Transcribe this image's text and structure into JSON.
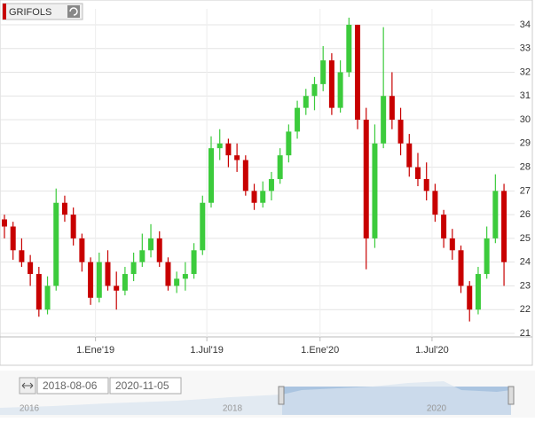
{
  "chart_data": {
    "type": "candlestick",
    "title": "GRIFOLS",
    "x": [
      "2018-08-06",
      "2018-08-20",
      "2018-09-03",
      "2018-09-17",
      "2018-10-01",
      "2018-10-15",
      "2018-10-29",
      "2018-11-12",
      "2018-11-26",
      "2018-12-10",
      "2018-12-24",
      "2019-01-07",
      "2019-01-21",
      "2019-02-04",
      "2019-02-18",
      "2019-03-04",
      "2019-03-18",
      "2019-04-01",
      "2019-04-15",
      "2019-04-29",
      "2019-05-13",
      "2019-05-27",
      "2019-06-10",
      "2019-06-24",
      "2019-07-08",
      "2019-07-22",
      "2019-08-05",
      "2019-08-19",
      "2019-09-02",
      "2019-09-16",
      "2019-09-30",
      "2019-10-14",
      "2019-10-28",
      "2019-11-11",
      "2019-11-25",
      "2019-12-09",
      "2019-12-23",
      "2020-01-06",
      "2020-01-20",
      "2020-02-03",
      "2020-02-17",
      "2020-03-02",
      "2020-03-16",
      "2020-03-30",
      "2020-04-13",
      "2020-04-27",
      "2020-05-11",
      "2020-05-25",
      "2020-06-08",
      "2020-06-22",
      "2020-07-06",
      "2020-07-20",
      "2020-08-03",
      "2020-08-17",
      "2020-08-31",
      "2020-09-14",
      "2020-09-28",
      "2020-10-12",
      "2020-10-26"
    ],
    "open": [
      25.8,
      25.5,
      24.5,
      24.0,
      23.5,
      22.0,
      23.0,
      26.5,
      26.0,
      25.0,
      24.0,
      22.5,
      24.0,
      23.0,
      22.8,
      23.5,
      24.0,
      24.5,
      25.0,
      24.0,
      23.0,
      23.3,
      23.5,
      24.5,
      26.5,
      28.8,
      29.0,
      28.5,
      28.3,
      27.0,
      26.5,
      27.0,
      27.5,
      28.5,
      29.5,
      30.5,
      31.0,
      31.5,
      32.5,
      30.5,
      32.0,
      34.0,
      30.0,
      25.0,
      29.0,
      31.0,
      30.0,
      29.0,
      28.0,
      27.5,
      27.0,
      26.0,
      25.0,
      24.5,
      23.0,
      22.0,
      23.5,
      25.0,
      27.0
    ],
    "high": [
      26.0,
      25.7,
      25.0,
      24.3,
      23.8,
      23.4,
      27.1,
      26.8,
      26.3,
      25.2,
      24.2,
      24.4,
      24.5,
      23.6,
      23.8,
      24.4,
      25.2,
      25.6,
      25.3,
      24.2,
      23.6,
      24.0,
      24.8,
      26.8,
      29.3,
      29.6,
      29.2,
      29.0,
      28.5,
      27.3,
      27.4,
      27.8,
      28.8,
      29.8,
      30.8,
      31.3,
      31.8,
      33.1,
      32.8,
      32.5,
      34.3,
      34.0,
      30.5,
      29.8,
      33.9,
      32.0,
      30.5,
      29.4,
      28.6,
      28.2,
      27.3,
      26.2,
      25.4,
      24.7,
      23.2,
      23.8,
      25.5,
      27.7,
      27.3
    ],
    "low": [
      25.0,
      24.1,
      23.8,
      23.0,
      21.7,
      21.8,
      22.8,
      25.7,
      24.7,
      23.6,
      22.2,
      22.3,
      22.8,
      22.0,
      22.6,
      23.2,
      23.8,
      24.2,
      23.8,
      22.8,
      22.7,
      22.8,
      23.3,
      24.3,
      26.3,
      28.3,
      28.0,
      27.8,
      26.8,
      26.2,
      26.3,
      26.6,
      27.3,
      28.2,
      29.2,
      30.2,
      30.4,
      31.2,
      30.2,
      30.3,
      31.8,
      29.6,
      23.7,
      24.6,
      28.8,
      29.6,
      28.5,
      27.6,
      27.2,
      26.6,
      25.7,
      24.6,
      24.1,
      22.7,
      21.5,
      21.8,
      23.3,
      24.8,
      23.0
    ],
    "close": [
      25.5,
      24.5,
      24.0,
      23.5,
      22.0,
      23.0,
      26.5,
      26.0,
      25.0,
      24.0,
      22.5,
      24.0,
      23.0,
      22.8,
      23.5,
      24.0,
      24.5,
      25.0,
      24.0,
      23.0,
      23.3,
      23.5,
      24.5,
      26.5,
      28.8,
      29.0,
      28.5,
      28.3,
      27.0,
      26.5,
      27.0,
      27.5,
      28.5,
      29.5,
      30.5,
      31.0,
      31.5,
      32.5,
      30.5,
      32.0,
      34.0,
      30.0,
      25.0,
      29.0,
      31.0,
      30.0,
      29.0,
      28.0,
      27.5,
      27.0,
      26.0,
      25.0,
      24.5,
      23.0,
      22.0,
      23.5,
      25.0,
      27.0,
      24.0
    ],
    "up_color": "#3ccb3c",
    "down_color": "#c80000",
    "xlim": [
      "2018-08-06",
      "2020-11-05"
    ],
    "xticks": [
      {
        "value": "2019-01-01",
        "label": "1.Ene'19"
      },
      {
        "value": "2019-07-01",
        "label": "1.Jul'19"
      },
      {
        "value": "2020-01-01",
        "label": "1.Ene'20"
      },
      {
        "value": "2020-07-01",
        "label": "1.Jul'20"
      }
    ],
    "ylim": [
      20.85,
      34.67
    ],
    "yticks": [
      21,
      22,
      23,
      24,
      25,
      26,
      27,
      28,
      29,
      30,
      31,
      32,
      33,
      34
    ],
    "grid": true,
    "range_from": "2018-08-06",
    "range_to": "2020-11-05",
    "navigator_labels": [
      "2016",
      "2018",
      "2020"
    ]
  }
}
